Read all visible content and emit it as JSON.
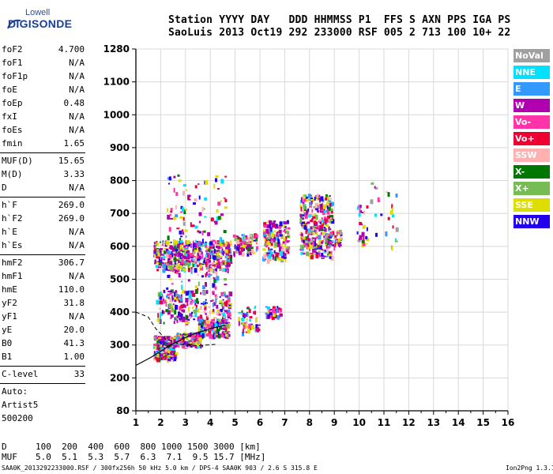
{
  "logo": {
    "brand": "Lowell",
    "product": "DIGISONDE"
  },
  "header": {
    "line1": "Station YYYY DAY   DDD HHMMSS P1  FFS S AXN PPS IGA PS",
    "line2": "SaoLuis 2013 Oct19 292 233000 RSF 005 2 713 100 10+ 22"
  },
  "params": {
    "group1": [
      {
        "name": "foF2",
        "value": "4.700"
      },
      {
        "name": "foF1",
        "value": "N/A"
      },
      {
        "name": "foF1p",
        "value": "N/A"
      },
      {
        "name": "foE",
        "value": "N/A"
      },
      {
        "name": "foEp",
        "value": "0.48"
      },
      {
        "name": "fxI",
        "value": "N/A"
      },
      {
        "name": "foEs",
        "value": "N/A"
      },
      {
        "name": "fmin",
        "value": "1.65"
      }
    ],
    "group2": [
      {
        "name": "MUF(D)",
        "value": "15.65"
      },
      {
        "name": "M(D)",
        "value": "3.33"
      },
      {
        "name": "D",
        "value": "N/A"
      }
    ],
    "group3": [
      {
        "name": "h`F",
        "value": "269.0"
      },
      {
        "name": "h`F2",
        "value": "269.0"
      },
      {
        "name": "h`E",
        "value": "N/A"
      },
      {
        "name": "h`Es",
        "value": "N/A"
      }
    ],
    "group4": [
      {
        "name": "hmF2",
        "value": "306.7"
      },
      {
        "name": "hmF1",
        "value": "N/A"
      },
      {
        "name": "hmE",
        "value": "110.0"
      },
      {
        "name": "yF2",
        "value": "31.8"
      },
      {
        "name": "yF1",
        "value": "N/A"
      },
      {
        "name": "yE",
        "value": "20.0"
      },
      {
        "name": "B0",
        "value": "41.3"
      },
      {
        "name": "B1",
        "value": "1.00"
      }
    ],
    "clevel": {
      "name": "C-level",
      "value": "33"
    },
    "autoscale": [
      "Auto:",
      "Artist5",
      "500200"
    ]
  },
  "legend": [
    {
      "label": "NoVal",
      "color": "#a0a0a0"
    },
    {
      "label": "NNE",
      "color": "#00e0ff"
    },
    {
      "label": "E",
      "color": "#3399ff"
    },
    {
      "label": "W",
      "color": "#b000b0"
    },
    {
      "label": "Vo-",
      "color": "#ff33aa"
    },
    {
      "label": "Vo+",
      "color": "#ee0033"
    },
    {
      "label": "SSW",
      "color": "#ffb0b0"
    },
    {
      "label": "X-",
      "color": "#007700"
    },
    {
      "label": "X+",
      "color": "#77bb55"
    },
    {
      "label": "SSE",
      "color": "#dddd00"
    },
    {
      "label": "NNW",
      "color": "#2200ee"
    }
  ],
  "chart_data": {
    "type": "scatter",
    "xlabel": "",
    "ylabel": "",
    "x_ticks": [
      "1",
      "2",
      "3",
      "4",
      "5",
      "6",
      "7",
      "8",
      "9",
      "10",
      "11",
      "12",
      "13",
      "14",
      "15",
      "16"
    ],
    "y_ticks": [
      "80",
      "200",
      "300",
      "400",
      "500",
      "600",
      "700",
      "800",
      "900",
      "1000",
      "1100",
      "1280"
    ],
    "xlim": [
      1,
      16
    ],
    "ylim": [
      80,
      1280
    ],
    "grid": true,
    "profile_solid": [
      [
        1.0,
        238
      ],
      [
        1.6,
        262
      ],
      [
        2.4,
        300
      ],
      [
        3.2,
        330
      ],
      [
        4.0,
        350
      ],
      [
        4.6,
        360
      ]
    ],
    "profile_dashed": [
      [
        1.0,
        400
      ],
      [
        1.5,
        385
      ],
      [
        1.8,
        350
      ],
      [
        2.2,
        318
      ],
      [
        2.8,
        302
      ],
      [
        3.5,
        298
      ],
      [
        4.2,
        302
      ]
    ],
    "echo_clusters": [
      {
        "x": [
          1.7,
          2.6
        ],
        "y": [
          260,
          330
        ],
        "n": 260
      },
      {
        "x": [
          2.6,
          3.6
        ],
        "y": [
          300,
          340
        ],
        "n": 130
      },
      {
        "x": [
          3.5,
          4.7
        ],
        "y": [
          330,
          380
        ],
        "n": 140
      },
      {
        "x": [
          1.8,
          4.8
        ],
        "y": [
          370,
          470
        ],
        "n": 260
      },
      {
        "x": [
          1.7,
          4.8
        ],
        "y": [
          530,
          620
        ],
        "n": 450
      },
      {
        "x": [
          2.2,
          4.6
        ],
        "y": [
          470,
          820
        ],
        "n": 180
      },
      {
        "x": [
          4.9,
          5.9
        ],
        "y": [
          580,
          640
        ],
        "n": 90
      },
      {
        "x": [
          6.1,
          7.1
        ],
        "y": [
          560,
          680
        ],
        "n": 170
      },
      {
        "x": [
          6.2,
          6.8
        ],
        "y": [
          390,
          420
        ],
        "n": 50
      },
      {
        "x": [
          5.1,
          5.9
        ],
        "y": [
          340,
          420
        ],
        "n": 50
      },
      {
        "x": [
          7.6,
          8.9
        ],
        "y": [
          570,
          760
        ],
        "n": 330
      },
      {
        "x": [
          8.6,
          9.3
        ],
        "y": [
          600,
          650
        ],
        "n": 50
      },
      {
        "x": [
          9.9,
          10.3
        ],
        "y": [
          600,
          730
        ],
        "n": 25
      },
      {
        "x": [
          10.4,
          11.5
        ],
        "y": [
          600,
          800
        ],
        "n": 25
      }
    ]
  },
  "bottom": {
    "row_d_label": "D",
    "row_d": "100  200  400  600  800 1000 1500 3000 [km]",
    "row_muf_label": "MUF",
    "row_muf": "5.0  5.1  5.3  5.7  6.3  7.1  9.5 15.7 [MHz]"
  },
  "footer": {
    "left": "SAA0K_2013292233000.RSF / 300fx256h 50 kHz 5.0 km / DPS-4 SAA0K 903 / 2.6 S 315.8 E",
    "right": "Ion2Png 1.3.17"
  }
}
